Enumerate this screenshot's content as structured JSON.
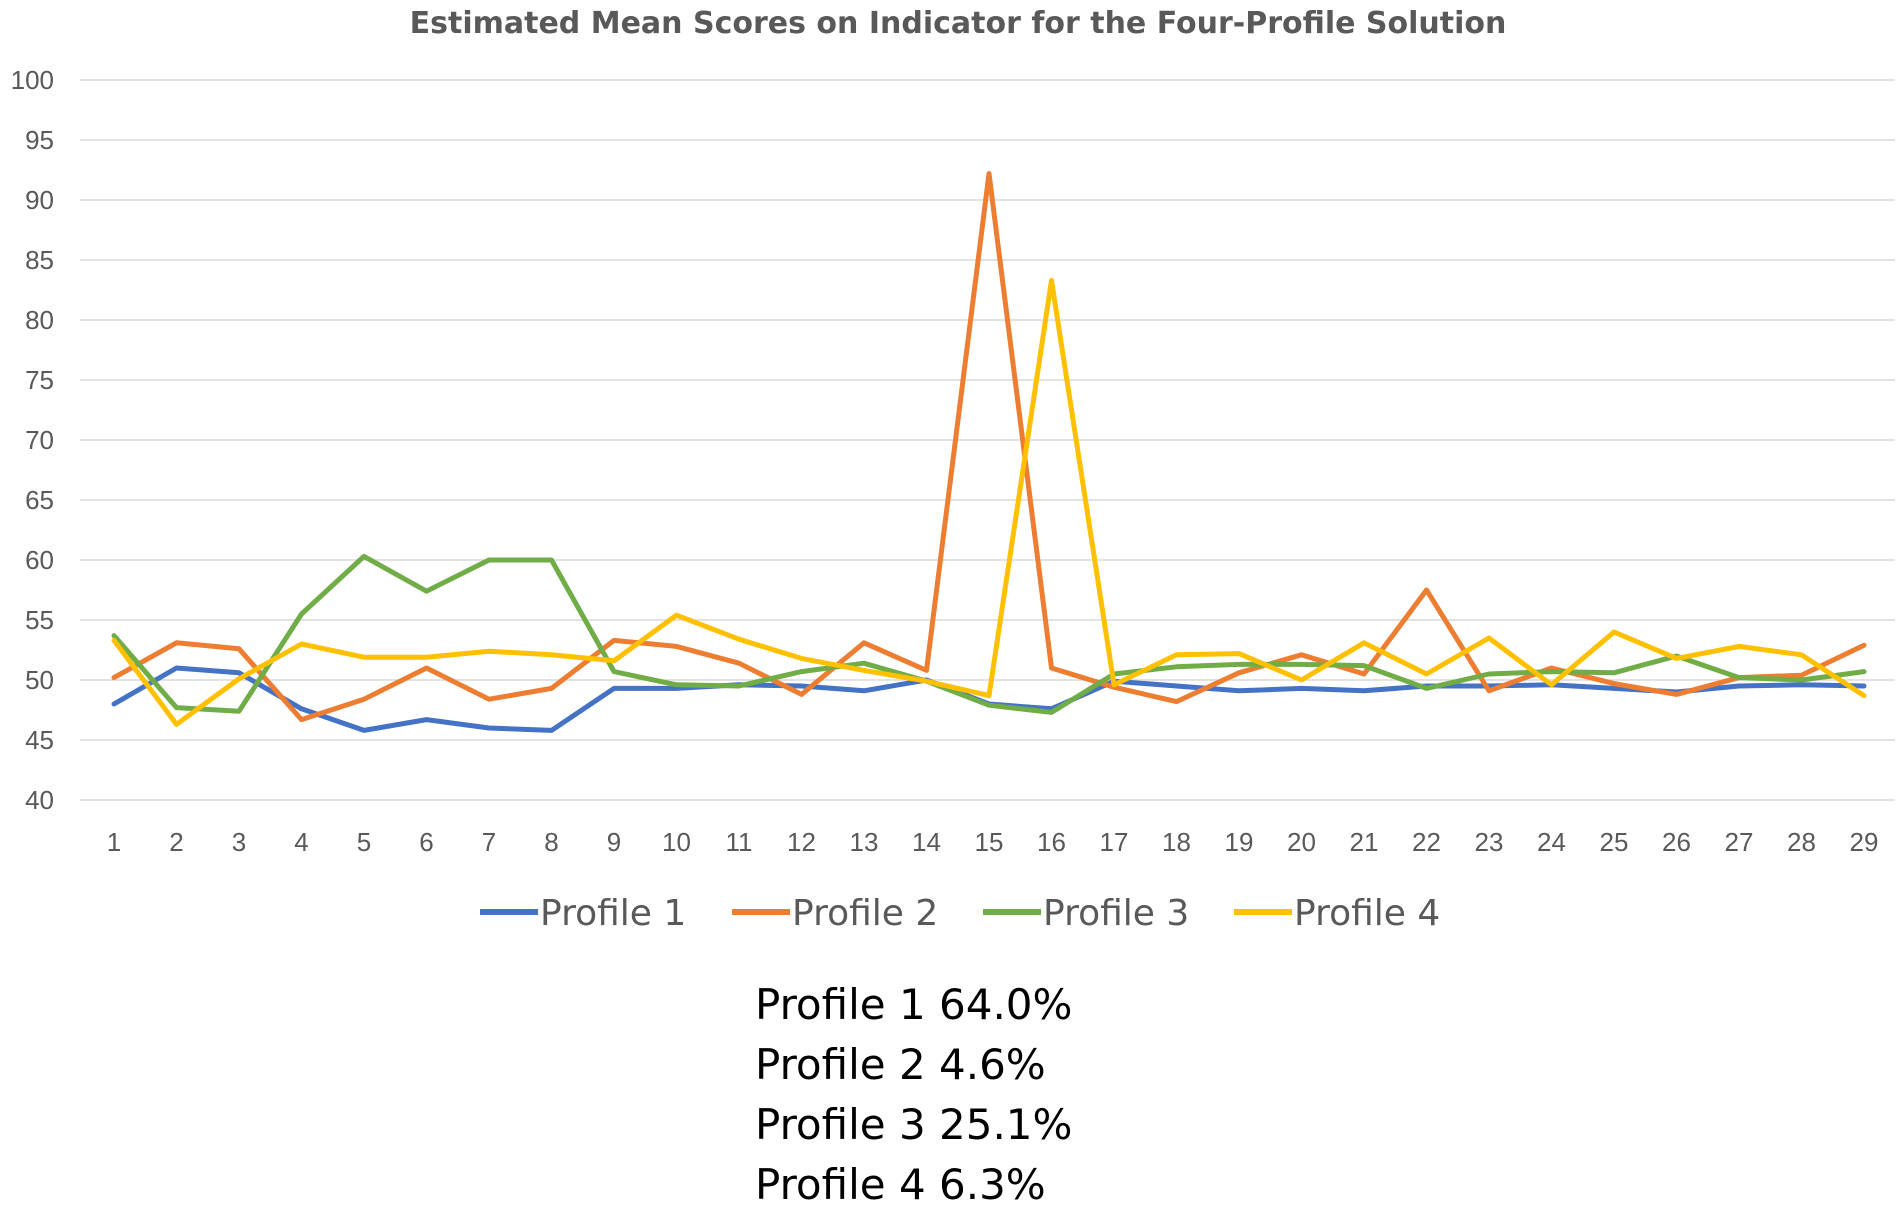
{
  "chart_data": {
    "type": "line",
    "title": "Estimated Mean Scores on Indicator for the Four-Profile Solution",
    "xlabel": "",
    "ylabel": "",
    "ylim": [
      40,
      100
    ],
    "yticks": [
      40,
      45,
      50,
      55,
      60,
      65,
      70,
      75,
      80,
      85,
      90,
      95,
      100
    ],
    "grid": true,
    "legend_position": "bottom",
    "categories": [
      "1",
      "2",
      "3",
      "4",
      "5",
      "6",
      "7",
      "8",
      "9",
      "10",
      "11",
      "12",
      "13",
      "14",
      "15",
      "16",
      "17",
      "18",
      "19",
      "20",
      "21",
      "22",
      "23",
      "24",
      "25",
      "26",
      "27",
      "28",
      "29"
    ],
    "series": [
      {
        "name": "Profile 1",
        "color": "#4472c4",
        "values": [
          48.0,
          51.0,
          50.6,
          47.6,
          45.8,
          46.7,
          46.0,
          45.8,
          49.3,
          49.3,
          49.6,
          49.5,
          49.1,
          50.0,
          48.0,
          47.6,
          49.9,
          49.5,
          49.1,
          49.3,
          49.1,
          49.5,
          49.5,
          49.6,
          49.3,
          49.0,
          49.5,
          49.6,
          49.5
        ]
      },
      {
        "name": "Profile 2",
        "color": "#ed7d31",
        "values": [
          50.2,
          53.1,
          52.6,
          46.7,
          48.4,
          51.0,
          48.4,
          49.3,
          53.3,
          52.8,
          51.4,
          48.8,
          53.1,
          50.8,
          92.2,
          51.0,
          49.4,
          48.2,
          50.6,
          52.1,
          50.5,
          57.5,
          49.1,
          51.0,
          49.7,
          48.8,
          50.2,
          50.4,
          52.9
        ]
      },
      {
        "name": "Profile 3",
        "color": "#70ad47",
        "values": [
          53.7,
          47.7,
          47.4,
          55.5,
          60.3,
          57.4,
          60.0,
          60.0,
          50.7,
          49.6,
          49.5,
          50.7,
          51.4,
          49.9,
          47.9,
          47.3,
          50.5,
          51.1,
          51.3,
          51.3,
          51.2,
          49.3,
          50.5,
          50.7,
          50.6,
          52.0,
          50.2,
          50.0,
          50.7
        ]
      },
      {
        "name": "Profile 4",
        "color": "#ffc000",
        "values": [
          53.3,
          46.3,
          50.1,
          53.0,
          51.9,
          51.9,
          52.4,
          52.1,
          51.6,
          55.4,
          53.4,
          51.8,
          50.8,
          49.9,
          48.7,
          83.3,
          49.6,
          52.1,
          52.2,
          50.0,
          53.1,
          50.5,
          53.5,
          49.6,
          54.0,
          51.8,
          52.8,
          52.1,
          48.7
        ]
      }
    ]
  },
  "notes": [
    "Profile 1 64.0%",
    "Profile 2 4.6%",
    "Profile 3 25.1%",
    "Profile 4 6.3%"
  ]
}
